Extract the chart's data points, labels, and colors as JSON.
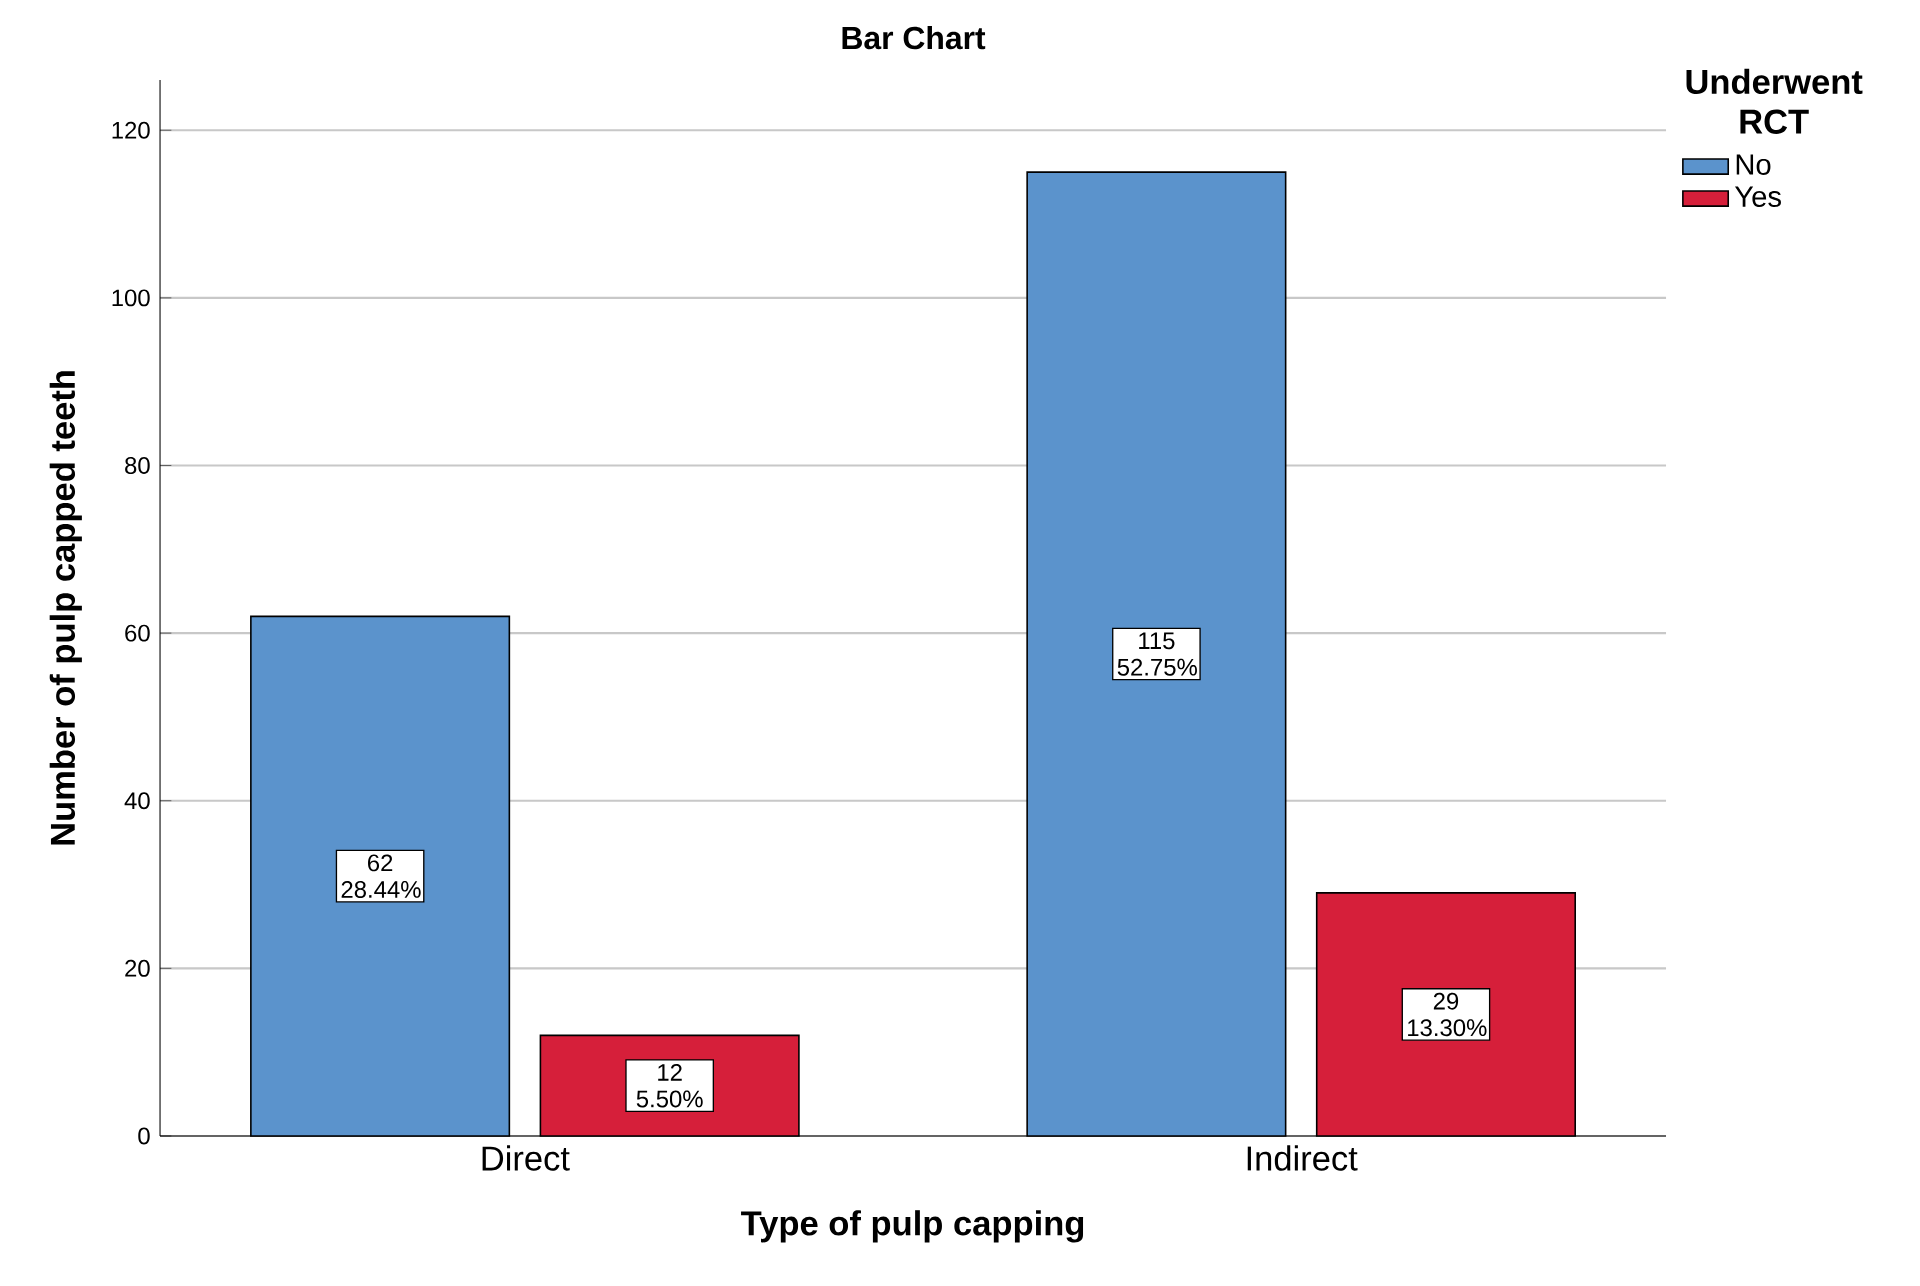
{
  "chart_data": {
    "type": "bar",
    "title": "Bar Chart",
    "xlabel": "Type of pulp capping",
    "ylabel": "Number of pulp capped teeth",
    "legend_title": "Underwent RCT",
    "categories": [
      "Direct",
      "Indirect"
    ],
    "series": [
      {
        "name": "No",
        "color": "#5b93cc",
        "values": [
          62,
          115
        ],
        "value_labels": [
          "62 28.44%",
          "115 52.75%"
        ]
      },
      {
        "name": "Yes",
        "color": "#d61f3a",
        "values": [
          12,
          29
        ],
        "value_labels": [
          "12 5.50%",
          "29 13.30%"
        ]
      }
    ],
    "ylim": [
      0,
      126
    ],
    "yticks": [
      0,
      20,
      40,
      60,
      80,
      100,
      120
    ],
    "grid": "y",
    "legend": "top right"
  }
}
